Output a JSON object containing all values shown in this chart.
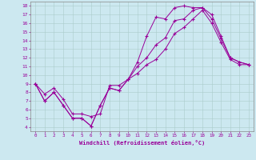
{
  "xlabel": "Windchill (Refroidissement éolien,°C)",
  "bg_color": "#cce8f0",
  "line_color": "#990099",
  "xlim": [
    -0.5,
    23.5
  ],
  "ylim": [
    3.5,
    18.5
  ],
  "xticks": [
    0,
    1,
    2,
    3,
    4,
    5,
    6,
    7,
    8,
    9,
    10,
    11,
    12,
    13,
    14,
    15,
    16,
    17,
    18,
    19,
    20,
    21,
    22,
    23
  ],
  "yticks": [
    4,
    5,
    6,
    7,
    8,
    9,
    10,
    11,
    12,
    13,
    14,
    15,
    16,
    17,
    18
  ],
  "line1_x": [
    0,
    1,
    2,
    3,
    4,
    5,
    6,
    7,
    8,
    9,
    10,
    11,
    12,
    13,
    14,
    15,
    16,
    17,
    18,
    19,
    20,
    21,
    22,
    23
  ],
  "line1_y": [
    9.0,
    7.0,
    8.0,
    6.5,
    5.0,
    5.0,
    4.1,
    6.5,
    8.5,
    8.2,
    9.5,
    11.5,
    14.5,
    16.7,
    16.5,
    17.8,
    18.0,
    17.8,
    17.8,
    17.0,
    14.5,
    12.0,
    11.5,
    11.2
  ],
  "line2_x": [
    0,
    1,
    2,
    3,
    4,
    5,
    6,
    7,
    8,
    9,
    10,
    11,
    12,
    13,
    14,
    15,
    16,
    17,
    18,
    19,
    20,
    21,
    22,
    23
  ],
  "line2_y": [
    9.0,
    7.0,
    8.0,
    6.5,
    5.0,
    5.0,
    4.1,
    6.5,
    8.5,
    8.2,
    9.5,
    11.0,
    12.0,
    13.5,
    14.3,
    16.3,
    16.5,
    17.5,
    17.8,
    16.5,
    14.2,
    12.0,
    11.5,
    11.2
  ],
  "line3_x": [
    0,
    1,
    2,
    3,
    4,
    5,
    6,
    7,
    8,
    9,
    10,
    11,
    12,
    13,
    14,
    15,
    16,
    17,
    18,
    19,
    20,
    21,
    22,
    23
  ],
  "line3_y": [
    9.0,
    7.8,
    8.5,
    7.2,
    5.5,
    5.5,
    5.2,
    5.5,
    8.8,
    8.8,
    9.5,
    10.2,
    11.2,
    11.8,
    13.0,
    14.8,
    15.5,
    16.5,
    17.5,
    16.0,
    13.8,
    11.8,
    11.2,
    11.2
  ]
}
